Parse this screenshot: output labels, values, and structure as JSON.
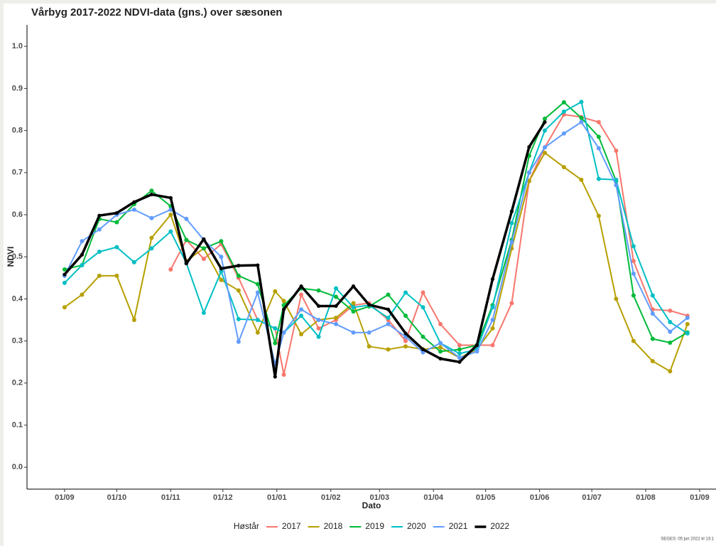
{
  "chart_data": {
    "type": "line",
    "title": "Vårbyg 2017-2022 NDVI-data (gns.) over sæsonen",
    "x_label": "Dato",
    "y_label": "NDVI",
    "legend_title": "Høstår",
    "source": "SEGES:  05 jun 2022 kl 13:1",
    "legend_position": "bottom",
    "grid": false,
    "xlim": [
      -21.6,
      374.4
    ],
    "ylim": [
      -0.052,
      1.051
    ],
    "xticks": [
      {
        "value": 0,
        "label": "01/09"
      },
      {
        "value": 30,
        "label": "01/10"
      },
      {
        "value": 61,
        "label": "01/11"
      },
      {
        "value": 91,
        "label": "01/12"
      },
      {
        "value": 122,
        "label": "01/01"
      },
      {
        "value": 153,
        "label": "01/02"
      },
      {
        "value": 181,
        "label": "01/03"
      },
      {
        "value": 212,
        "label": "01/04"
      },
      {
        "value": 242,
        "label": "01/05"
      },
      {
        "value": 273,
        "label": "01/06"
      },
      {
        "value": 303,
        "label": "01/07"
      },
      {
        "value": 334,
        "label": "01/08"
      },
      {
        "value": 365,
        "label": "01/09"
      }
    ],
    "yticks": [
      {
        "value": 0,
        "label": "0.0"
      },
      0.1,
      0.2,
      0.3,
      0.4,
      0.5,
      0.6,
      0.7,
      0.8,
      0.9,
      {
        "value": 1,
        "label": "1.0"
      }
    ],
    "x": [
      0,
      10,
      20,
      30,
      40,
      50,
      61,
      70,
      80,
      90,
      100,
      111,
      121,
      126,
      136,
      146,
      156,
      166,
      175,
      186,
      196,
      206,
      216,
      227,
      237,
      246,
      257,
      267,
      276,
      287,
      297,
      307,
      317,
      327,
      338,
      348,
      358
    ],
    "series": [
      {
        "name": "2017",
        "color": "#F8766D",
        "width": 2,
        "values": [
          null,
          null,
          null,
          null,
          null,
          null,
          0.47,
          0.54,
          0.495,
          0.53,
          0.45,
          0.35,
          0.33,
          0.22,
          0.41,
          0.33,
          0.35,
          0.385,
          0.39,
          0.35,
          0.3,
          0.415,
          0.34,
          0.29,
          0.29,
          0.29,
          0.39,
          0.68,
          0.76,
          0.838,
          0.832,
          0.82,
          0.752,
          0.49,
          0.375,
          0.372,
          0.36
        ]
      },
      {
        "name": "2018",
        "color": "#B79F00",
        "width": 2,
        "values": [
          0.38,
          0.41,
          0.455,
          0.455,
          0.35,
          0.545,
          0.6,
          0.49,
          0.52,
          0.445,
          0.42,
          0.32,
          0.418,
          0.395,
          0.316,
          0.35,
          0.355,
          0.39,
          0.287,
          0.28,
          0.287,
          0.28,
          0.285,
          0.26,
          0.28,
          0.33,
          0.52,
          0.68,
          0.747,
          0.713,
          0.683,
          0.597,
          0.4,
          0.3,
          0.252,
          0.228,
          0.34
        ]
      },
      {
        "name": "2019",
        "color": "#00BA38",
        "width": 2,
        "values": [
          0.47,
          0.48,
          0.59,
          0.582,
          0.625,
          0.657,
          0.62,
          0.54,
          0.52,
          0.537,
          0.455,
          0.435,
          0.295,
          0.385,
          0.425,
          0.42,
          0.405,
          0.37,
          0.382,
          0.41,
          0.36,
          0.31,
          0.275,
          0.28,
          0.29,
          0.385,
          0.54,
          0.74,
          0.828,
          0.867,
          0.83,
          0.785,
          0.68,
          0.408,
          0.305,
          0.296,
          0.32
        ]
      },
      {
        "name": "2020",
        "color": "#00BFC4",
        "width": 2,
        "values": [
          0.438,
          0.48,
          0.512,
          0.523,
          0.487,
          0.52,
          0.56,
          0.485,
          0.367,
          0.465,
          0.352,
          0.35,
          0.33,
          0.32,
          0.36,
          0.31,
          0.425,
          0.38,
          0.385,
          0.355,
          0.415,
          0.38,
          0.295,
          0.27,
          0.28,
          0.38,
          0.58,
          0.7,
          0.8,
          0.845,
          0.868,
          0.685,
          0.683,
          0.525,
          0.408,
          0.345,
          0.318
        ]
      },
      {
        "name": "2021",
        "color": "#619CFF",
        "width": 2,
        "values": [
          0.455,
          0.537,
          0.565,
          0.6,
          0.612,
          0.592,
          0.612,
          0.59,
          0.54,
          0.5,
          0.298,
          0.415,
          0.245,
          0.32,
          0.375,
          0.35,
          0.34,
          0.32,
          0.32,
          0.34,
          0.31,
          0.273,
          0.295,
          0.26,
          0.275,
          0.35,
          0.535,
          0.7,
          0.76,
          0.793,
          0.82,
          0.758,
          0.67,
          0.46,
          0.365,
          0.322,
          0.355
        ]
      },
      {
        "name": "2022",
        "color": "#000000",
        "width": 3.5,
        "values": [
          0.458,
          0.505,
          0.598,
          0.604,
          0.63,
          0.648,
          0.64,
          0.484,
          0.542,
          0.472,
          0.479,
          0.48,
          0.215,
          0.375,
          0.43,
          0.383,
          0.383,
          0.43,
          0.386,
          0.375,
          0.318,
          0.28,
          0.258,
          0.25,
          0.29,
          0.447,
          0.608,
          0.761,
          0.82,
          null,
          null,
          null,
          null,
          null,
          null,
          null,
          null
        ]
      }
    ]
  }
}
